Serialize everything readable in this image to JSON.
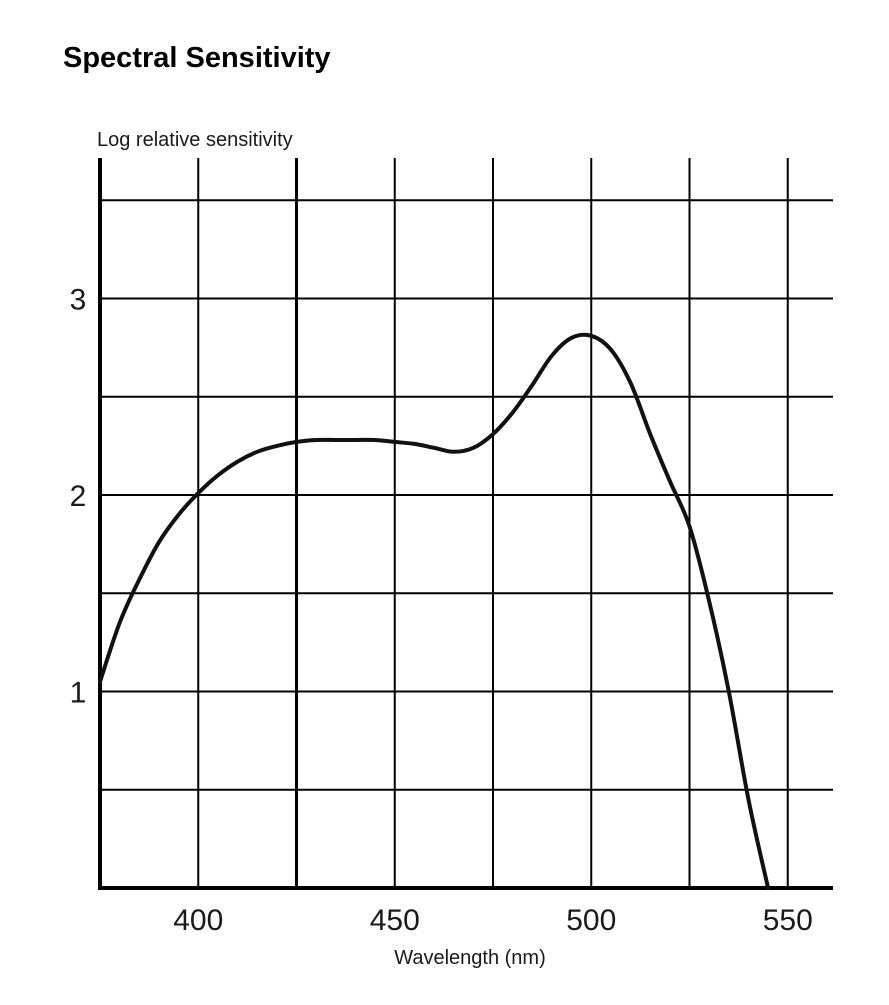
{
  "page": {
    "title": "Spectral Sensitivity"
  },
  "chart_data": {
    "type": "line",
    "title": "Spectral Sensitivity",
    "ylabel": "Log relative sensitivity",
    "xlabel": "Wavelength (nm)",
    "xlim": [
      375,
      560
    ],
    "ylim": [
      0,
      3.5
    ],
    "x_ticks": [
      400,
      450,
      500,
      550
    ],
    "y_ticks": [
      1,
      2,
      3
    ],
    "x_grid": [
      375,
      400,
      425,
      450,
      475,
      500,
      525,
      550
    ],
    "y_grid": [
      0.5,
      1,
      1.5,
      2,
      2.5,
      3,
      3.5
    ],
    "grid": true,
    "line_color": "#111111",
    "grid_color": "#000000",
    "series": [
      {
        "x": [
          375,
          380,
          385,
          390,
          395,
          400,
          405,
          410,
          415,
          420,
          425,
          430,
          435,
          440,
          445,
          450,
          455,
          460,
          465,
          470,
          475,
          480,
          485,
          490,
          495,
          500,
          505,
          510,
          515,
          520,
          525,
          530,
          535,
          540,
          545
        ],
        "y": [
          1.05,
          1.35,
          1.57,
          1.76,
          1.9,
          2.01,
          2.1,
          2.17,
          2.22,
          2.25,
          2.27,
          2.28,
          2.28,
          2.28,
          2.28,
          2.27,
          2.26,
          2.24,
          2.22,
          2.24,
          2.31,
          2.42,
          2.56,
          2.71,
          2.8,
          2.81,
          2.74,
          2.57,
          2.31,
          2.07,
          1.84,
          1.46,
          1.0,
          0.45,
          0.0
        ]
      }
    ]
  }
}
